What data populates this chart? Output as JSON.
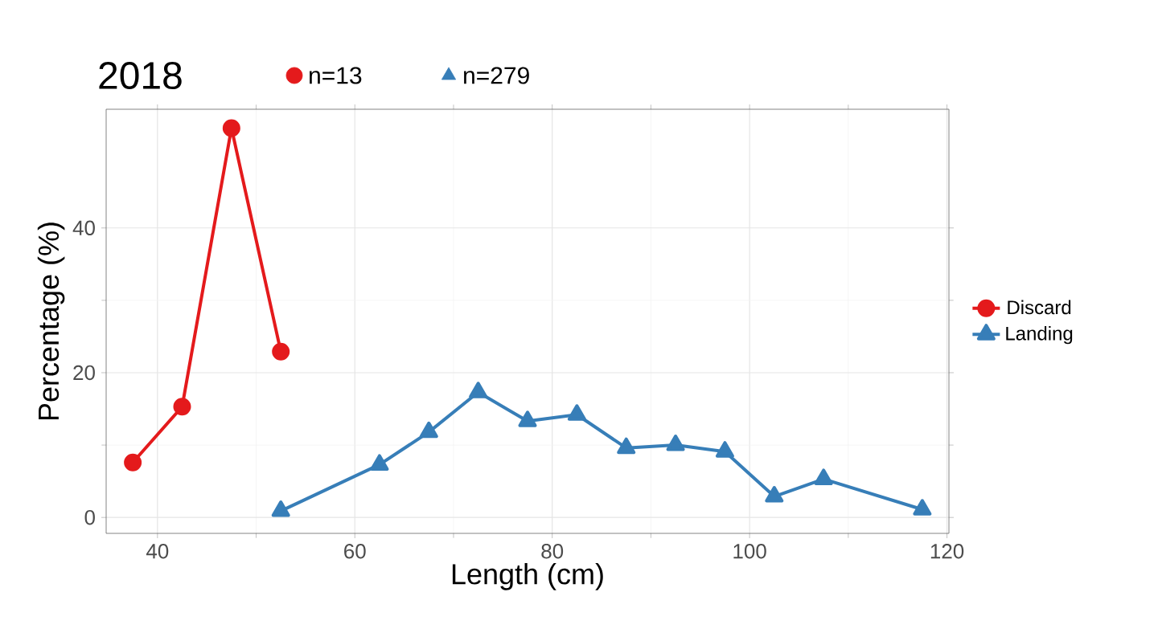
{
  "chart_data": {
    "type": "line",
    "title": "2018",
    "xlabel": "Length (cm)",
    "ylabel": "Percentage (%)",
    "annotations": [
      "n=13",
      "n=279"
    ],
    "series": [
      {
        "name": "Discard",
        "color": "#e41a1c",
        "marker": "circle",
        "x": [
          37.5,
          42.5,
          47.5,
          52.5
        ],
        "values": [
          7.6,
          15.3,
          53.8,
          22.9
        ]
      },
      {
        "name": "Landing",
        "color": "#377eb8",
        "marker": "triangle",
        "x": [
          52.5,
          62.5,
          67.5,
          72.5,
          77.5,
          82.5,
          87.5,
          92.5,
          97.5,
          102.5,
          107.5,
          117.5
        ],
        "values": [
          0.9,
          7.3,
          11.8,
          17.3,
          13.3,
          14.2,
          9.6,
          10.0,
          9.1,
          2.9,
          5.3,
          1.1
        ]
      }
    ],
    "xlim": [
      34.8,
      120.2
    ],
    "ylim": [
      -2.2,
      56.4
    ],
    "xticks": [
      40,
      60,
      80,
      100,
      120
    ],
    "yticks": [
      0,
      20,
      40
    ],
    "grid": true,
    "legend": "right",
    "line_style": "solid"
  }
}
